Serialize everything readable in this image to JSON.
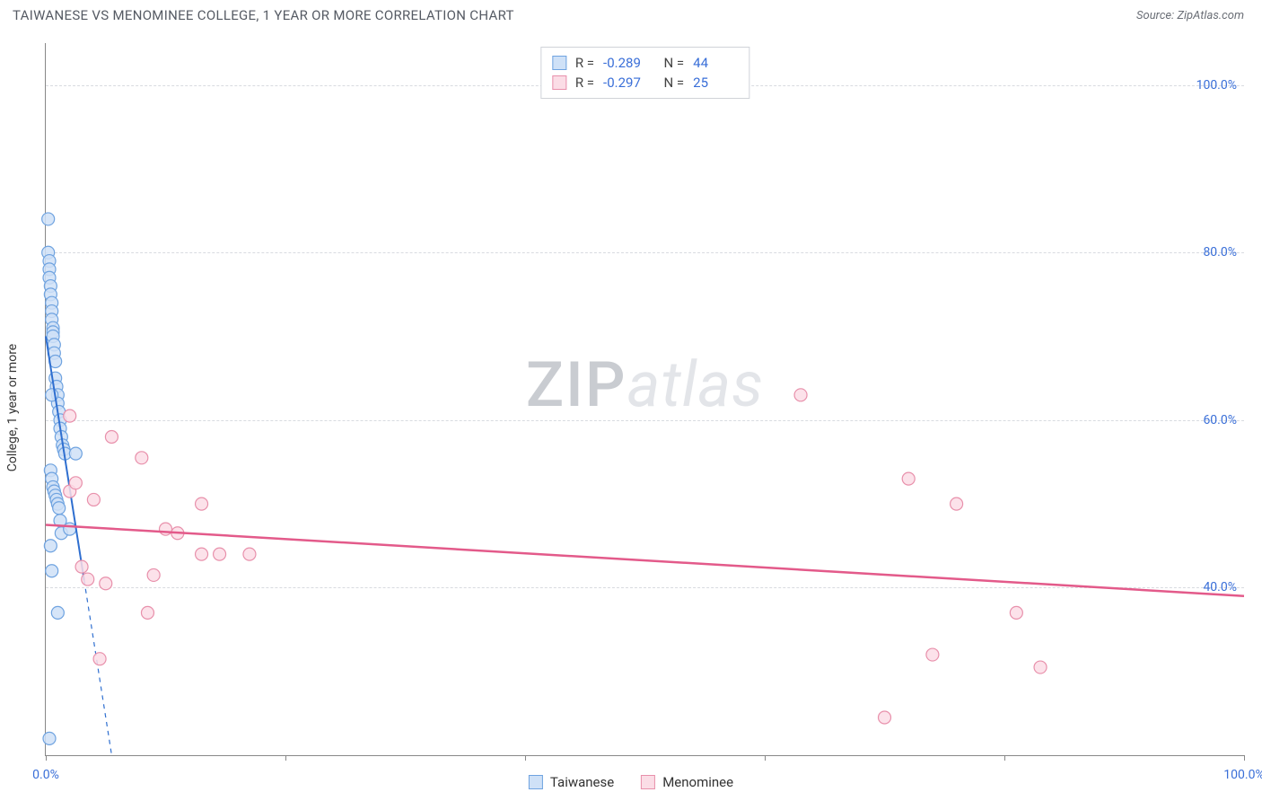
{
  "title": "TAIWANESE VS MENOMINEE COLLEGE, 1 YEAR OR MORE CORRELATION CHART",
  "source_label": "Source: ",
  "source_name": "ZipAtlas.com",
  "ylabel": "College, 1 year or more",
  "watermark_a": "ZIP",
  "watermark_b": "atlas",
  "chart": {
    "type": "scatter",
    "xlim": [
      0,
      100
    ],
    "ylim": [
      20,
      105
    ],
    "y_gridlines": [
      40,
      60,
      80,
      100
    ],
    "y_tick_labels": [
      "40.0%",
      "60.0%",
      "80.0%",
      "100.0%"
    ],
    "x_ticks": [
      0,
      20,
      40,
      60,
      80,
      100
    ],
    "x_tick_labels_shown": {
      "0": "0.0%",
      "100": "100.0%"
    },
    "background_color": "#ffffff",
    "grid_color": "#d8dbe0",
    "axis_color": "#888888",
    "tick_label_color": "#3a6fd8",
    "marker_radius": 7,
    "marker_stroke_width": 1.2,
    "series": [
      {
        "name": "Taiwanese",
        "color_fill": "#cfe1f7",
        "color_stroke": "#6fa3e0",
        "R": "-0.289",
        "N": "44",
        "trend": {
          "x1": 0,
          "y1": 70,
          "x2": 5.5,
          "y2": 20,
          "solid_until_x": 3.2,
          "color": "#2f6fd0",
          "width": 2
        },
        "points": [
          [
            0.2,
            84
          ],
          [
            0.2,
            80
          ],
          [
            0.3,
            79
          ],
          [
            0.3,
            78
          ],
          [
            0.3,
            77
          ],
          [
            0.4,
            76
          ],
          [
            0.4,
            75
          ],
          [
            0.5,
            74
          ],
          [
            0.5,
            73
          ],
          [
            0.5,
            72
          ],
          [
            0.6,
            71
          ],
          [
            0.6,
            70.5
          ],
          [
            0.6,
            70
          ],
          [
            0.7,
            69
          ],
          [
            0.7,
            68
          ],
          [
            0.8,
            67
          ],
          [
            0.8,
            65
          ],
          [
            0.9,
            64
          ],
          [
            1.0,
            63
          ],
          [
            1.0,
            62
          ],
          [
            1.1,
            61
          ],
          [
            1.2,
            60
          ],
          [
            1.2,
            59
          ],
          [
            1.3,
            58
          ],
          [
            1.4,
            57
          ],
          [
            1.5,
            56.5
          ],
          [
            1.6,
            56
          ],
          [
            0.5,
            63
          ],
          [
            2.5,
            56
          ],
          [
            0.4,
            54
          ],
          [
            0.5,
            53
          ],
          [
            0.6,
            52
          ],
          [
            0.7,
            51.5
          ],
          [
            0.8,
            51
          ],
          [
            0.9,
            50.5
          ],
          [
            1.0,
            50
          ],
          [
            1.1,
            49.5
          ],
          [
            1.2,
            48
          ],
          [
            1.3,
            46.5
          ],
          [
            2.0,
            47
          ],
          [
            0.5,
            42
          ],
          [
            1.0,
            37
          ],
          [
            0.3,
            22
          ],
          [
            0.4,
            45
          ]
        ]
      },
      {
        "name": "Menominee",
        "color_fill": "#fbdde6",
        "color_stroke": "#e890ab",
        "R": "-0.297",
        "N": "25",
        "trend": {
          "x1": 0,
          "y1": 47.5,
          "x2": 100,
          "y2": 39,
          "color": "#e35a8a",
          "width": 2.5
        },
        "points": [
          [
            2,
            60.5
          ],
          [
            5.5,
            58
          ],
          [
            8,
            55.5
          ],
          [
            2,
            51.5
          ],
          [
            4,
            50.5
          ],
          [
            10,
            47
          ],
          [
            11,
            46.5
          ],
          [
            13,
            44
          ],
          [
            14.5,
            44
          ],
          [
            17,
            44
          ],
          [
            9,
            41.5
          ],
          [
            3,
            42.5
          ],
          [
            3.5,
            41
          ],
          [
            5,
            40.5
          ],
          [
            8.5,
            37
          ],
          [
            4.5,
            31.5
          ],
          [
            63,
            63
          ],
          [
            72,
            53
          ],
          [
            76,
            50
          ],
          [
            74,
            32
          ],
          [
            81,
            37
          ],
          [
            83,
            30.5
          ],
          [
            70,
            24.5
          ],
          [
            13,
            50
          ],
          [
            2.5,
            52.5
          ]
        ]
      }
    ]
  },
  "legend_bottom": [
    {
      "label": "Taiwanese",
      "fill": "#cfe1f7",
      "stroke": "#6fa3e0"
    },
    {
      "label": "Menominee",
      "fill": "#fbdde6",
      "stroke": "#e890ab"
    }
  ]
}
